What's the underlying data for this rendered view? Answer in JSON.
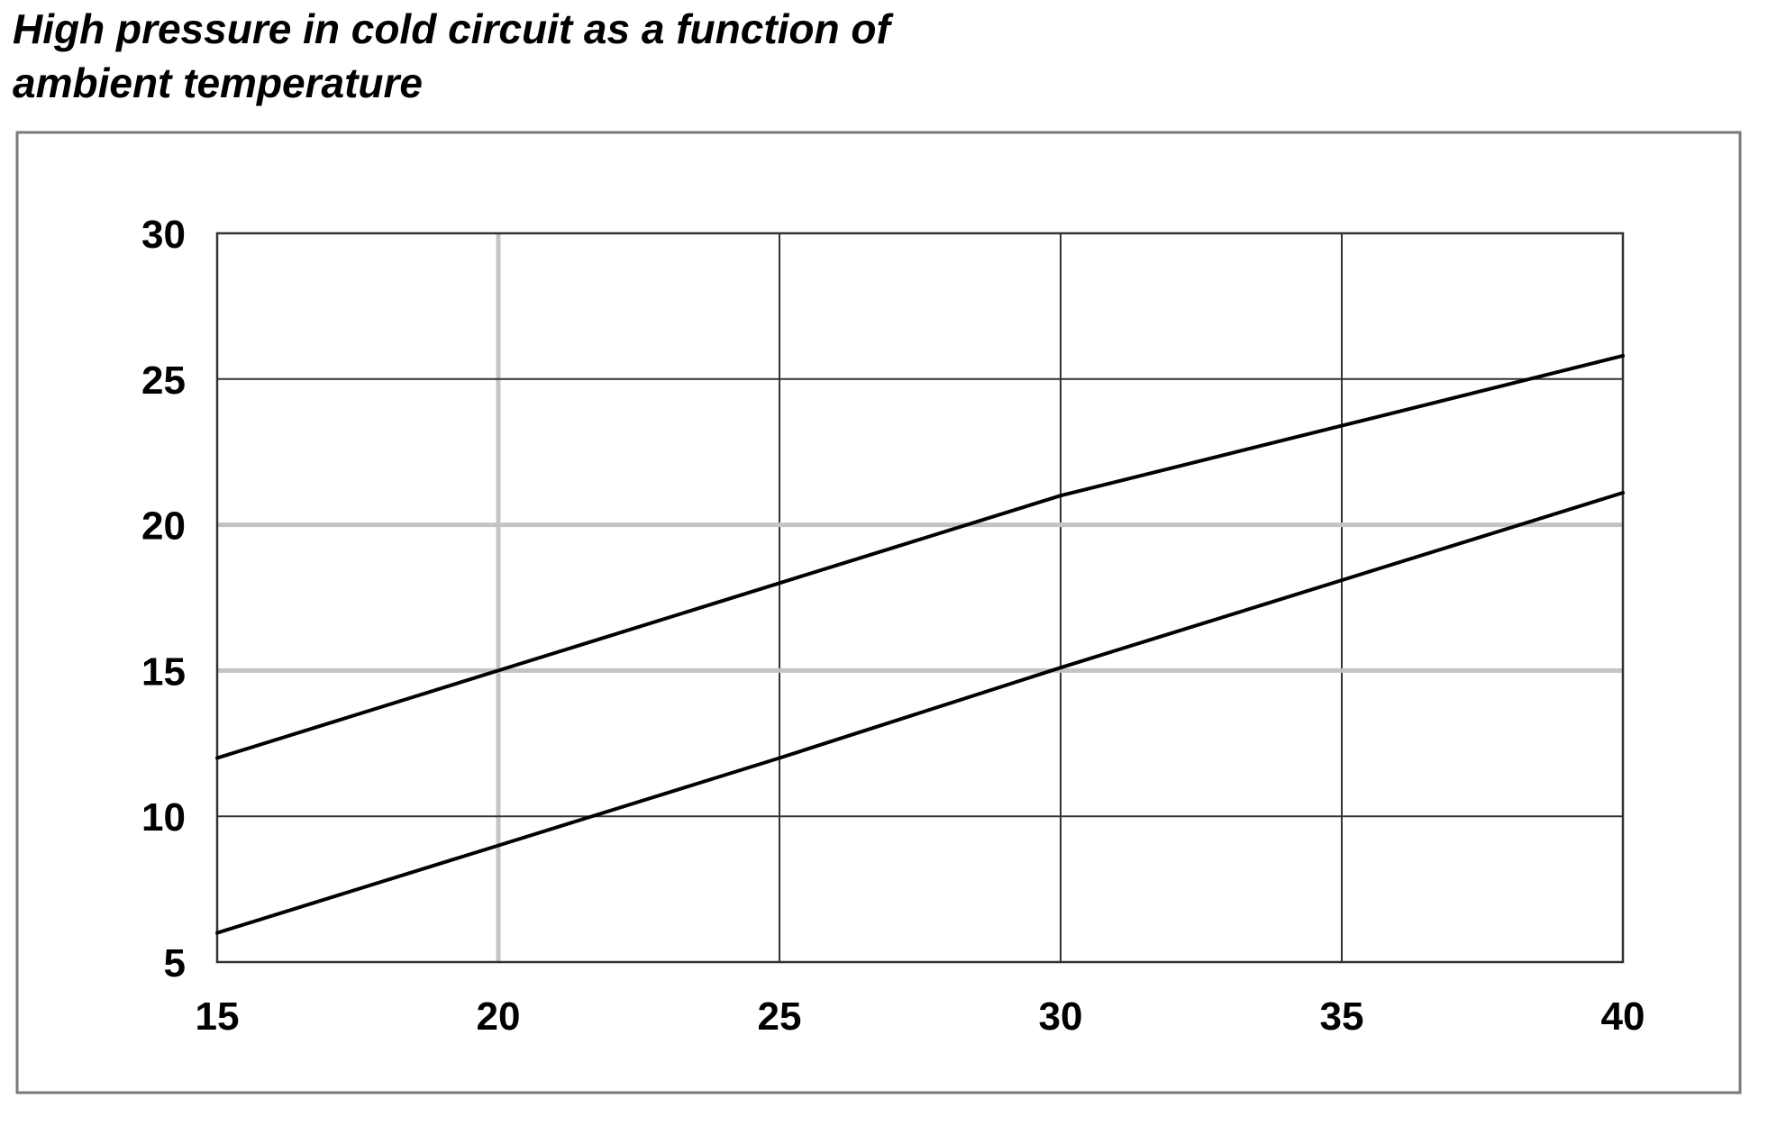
{
  "title_lines": [
    "High pressure in cold circuit as a function of",
    "ambient temperature"
  ],
  "chart_data": {
    "type": "line",
    "title": "High pressure in cold circuit as a function of ambient temperature",
    "xlabel": "",
    "ylabel": "",
    "xlim": [
      15,
      40
    ],
    "ylim": [
      5,
      30
    ],
    "x_ticks": [
      15,
      20,
      25,
      30,
      35,
      40
    ],
    "y_ticks": [
      5,
      10,
      15,
      20,
      25,
      30
    ],
    "x_tick_labels": [
      "15",
      "20",
      "25",
      "30",
      "35",
      "40"
    ],
    "y_tick_labels": [
      "5",
      "10",
      "15",
      "20",
      "25",
      "30"
    ],
    "grid": true,
    "legend": "none",
    "series": [
      {
        "x": [
          15,
          20,
          25,
          30,
          35,
          40
        ],
        "values": [
          12,
          15,
          18,
          21,
          23.4,
          25.8
        ]
      },
      {
        "x": [
          15,
          20,
          25,
          30,
          35,
          40
        ],
        "values": [
          6,
          9,
          12,
          15.1,
          18.1,
          21.1
        ]
      }
    ],
    "colors": {
      "lines": "#000000",
      "grid_dark": "#333333",
      "grid_light": "#c4c4c4",
      "frame": "#7a7a7a"
    },
    "light_grid": {
      "x": [
        20
      ],
      "y": [
        15,
        20
      ]
    }
  }
}
